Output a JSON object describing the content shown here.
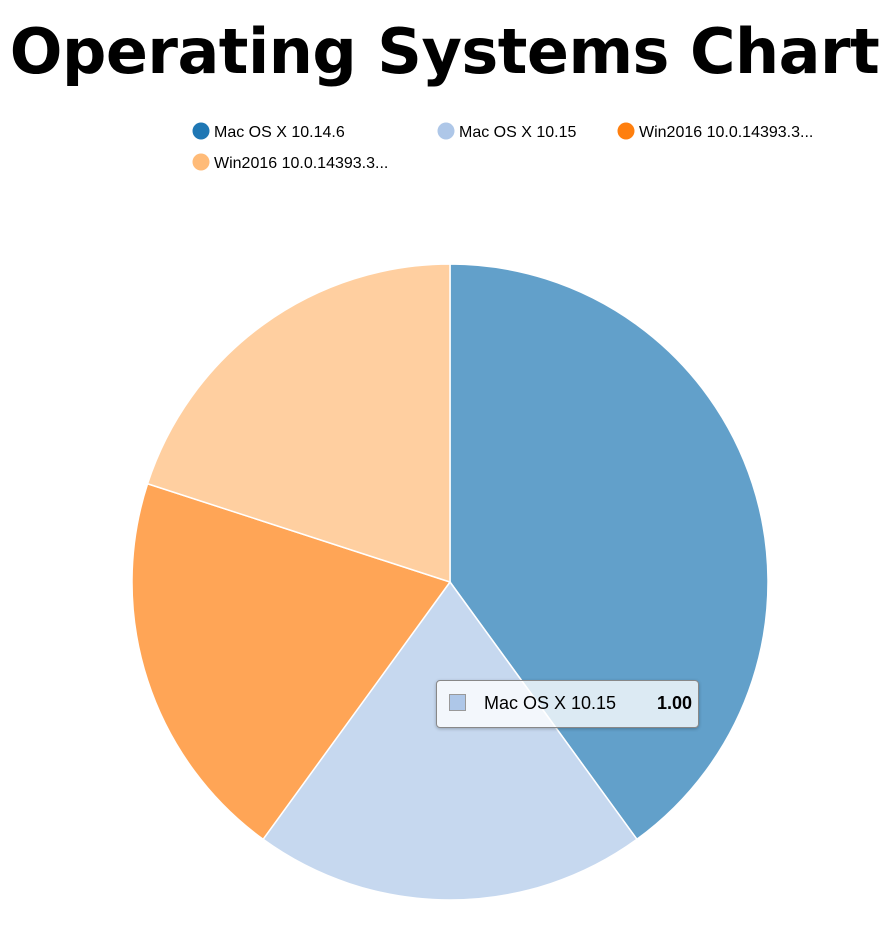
{
  "page": {
    "title": "Operating Systems Chart"
  },
  "chart_data": {
    "type": "pie",
    "title": "Operating Systems Chart",
    "categories": [
      "Mac OS X 10.14.6",
      "Mac OS X 10.15",
      "Win2016 10.0.14393.3...",
      "Win2016 10.0.14393.3..."
    ],
    "values": [
      2,
      1,
      1,
      1
    ],
    "colors": [
      "#1f77b4",
      "#aec7e8",
      "#ff7f0e",
      "#ffbb78"
    ],
    "legend_position": "top",
    "slice_opacity": 0.7
  },
  "tooltip": {
    "key": "Mac OS X 10.15",
    "value": "1.00",
    "color": "#aec7e8"
  }
}
